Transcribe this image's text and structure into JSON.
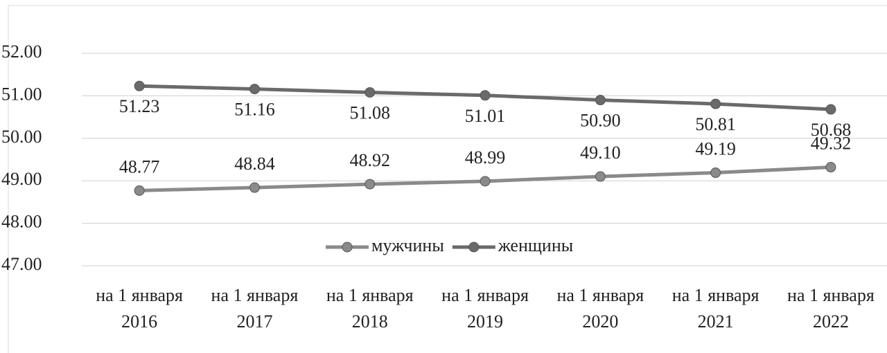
{
  "chart_data": {
    "type": "line",
    "categories": [
      "на 1 января 2016",
      "на 1 января 2017",
      "на 1 января 2018",
      "на 1 января 2019",
      "на 1 января 2020",
      "на 1 января 2021",
      "на 1 января 2022"
    ],
    "series": [
      {
        "name": "мужчины",
        "color": "#8a8a8a",
        "values": [
          48.77,
          48.84,
          48.92,
          48.99,
          49.1,
          49.19,
          49.32
        ],
        "value_labels": [
          "48.77",
          "48.84",
          "48.92",
          "48.99",
          "49.10",
          "49.19",
          "49.32"
        ]
      },
      {
        "name": "женщины",
        "color": "#6a6a6a",
        "values": [
          51.23,
          51.16,
          51.08,
          51.01,
          50.9,
          50.81,
          50.68
        ],
        "value_labels": [
          "51.23",
          "51.16",
          "51.08",
          "51.01",
          "50.90",
          "50.81",
          "50.68"
        ]
      }
    ],
    "ylim": [
      47,
      52
    ],
    "yticks": [
      {
        "value": 47,
        "label": "47.00"
      },
      {
        "value": 48,
        "label": "48.00"
      },
      {
        "value": 49,
        "label": "49.00"
      },
      {
        "value": 50,
        "label": "50.00"
      },
      {
        "value": 51,
        "label": "51.00"
      },
      {
        "value": 52,
        "label": "52.00"
      }
    ],
    "grid": true,
    "legend": "bottom"
  }
}
